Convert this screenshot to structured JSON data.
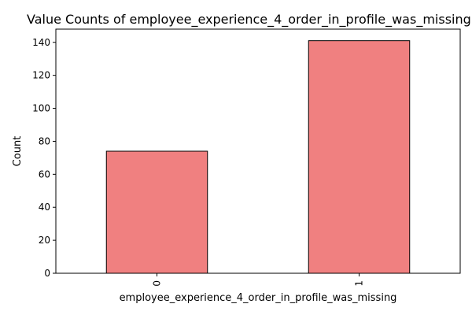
{
  "chart_data": {
    "type": "bar",
    "title": "Value Counts of employee_experience_4_order_in_profile_was_missing",
    "xlabel": "employee_experience_4_order_in_profile_was_missing",
    "ylabel": "Count",
    "categories": [
      "0",
      "1"
    ],
    "values": [
      74,
      141
    ],
    "ylim": [
      0,
      148
    ],
    "yticks": [
      0,
      20,
      40,
      60,
      80,
      100,
      120,
      140
    ],
    "bar_color": "#f08080",
    "bar_edge_color": "#000000",
    "grid": false,
    "legend": "none"
  }
}
